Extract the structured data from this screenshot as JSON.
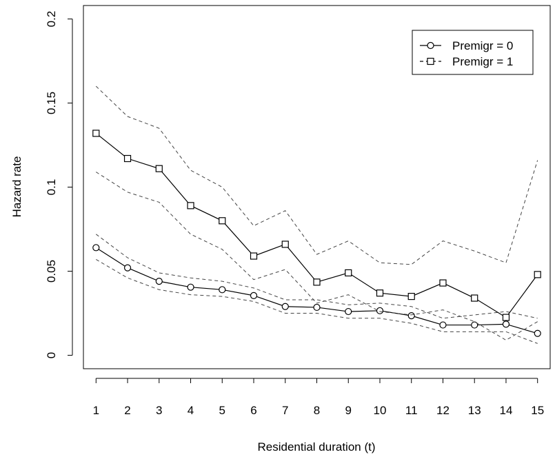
{
  "chart_data": {
    "type": "line",
    "xlabel": "Residential duration (t)",
    "ylabel": "Hazard rate",
    "x": [
      1,
      2,
      3,
      4,
      5,
      6,
      7,
      8,
      9,
      10,
      11,
      12,
      13,
      14,
      15
    ],
    "x_tick_labels": [
      "1",
      "2",
      "3",
      "4",
      "5",
      "6",
      "7",
      "8",
      "9",
      "10",
      "11",
      "12",
      "13",
      "14",
      "15"
    ],
    "y_ticks": [
      0,
      0.05,
      0.1,
      0.15,
      0.2
    ],
    "y_tick_labels": [
      "0",
      "0.05",
      "0.1",
      "0.15",
      "0.2"
    ],
    "xlim": [
      0.6,
      15.4
    ],
    "ylim": [
      -0.008,
      0.208
    ],
    "grid": false,
    "legend_position": "top-right",
    "series": [
      {
        "name": "Premigr = 0",
        "marker": "circle",
        "line": "solid",
        "values": [
          0.064,
          0.052,
          0.044,
          0.0405,
          0.039,
          0.0355,
          0.029,
          0.0285,
          0.026,
          0.0265,
          0.0235,
          0.018,
          0.018,
          0.0185,
          0.013
        ],
        "ci_lower": [
          0.057,
          0.046,
          0.039,
          0.036,
          0.035,
          0.032,
          0.025,
          0.025,
          0.022,
          0.022,
          0.019,
          0.014,
          0.014,
          0.014,
          0.007
        ],
        "ci_upper": [
          0.072,
          0.058,
          0.049,
          0.046,
          0.044,
          0.04,
          0.033,
          0.033,
          0.03,
          0.031,
          0.029,
          0.022,
          0.024,
          0.026,
          0.022
        ]
      },
      {
        "name": "Premigr = 1",
        "marker": "square",
        "line": "solid",
        "values": [
          0.132,
          0.117,
          0.111,
          0.089,
          0.08,
          0.059,
          0.066,
          0.0435,
          0.049,
          0.037,
          0.035,
          0.043,
          0.034,
          0.0225,
          0.048
        ],
        "ci_lower": [
          0.109,
          0.097,
          0.091,
          0.072,
          0.063,
          0.045,
          0.051,
          0.031,
          0.036,
          0.026,
          0.024,
          0.027,
          0.02,
          0.009,
          0.02
        ],
        "ci_upper": [
          0.16,
          0.142,
          0.135,
          0.11,
          0.1,
          0.077,
          0.086,
          0.06,
          0.068,
          0.055,
          0.054,
          0.068,
          0.062,
          0.055,
          0.116
        ]
      }
    ]
  }
}
